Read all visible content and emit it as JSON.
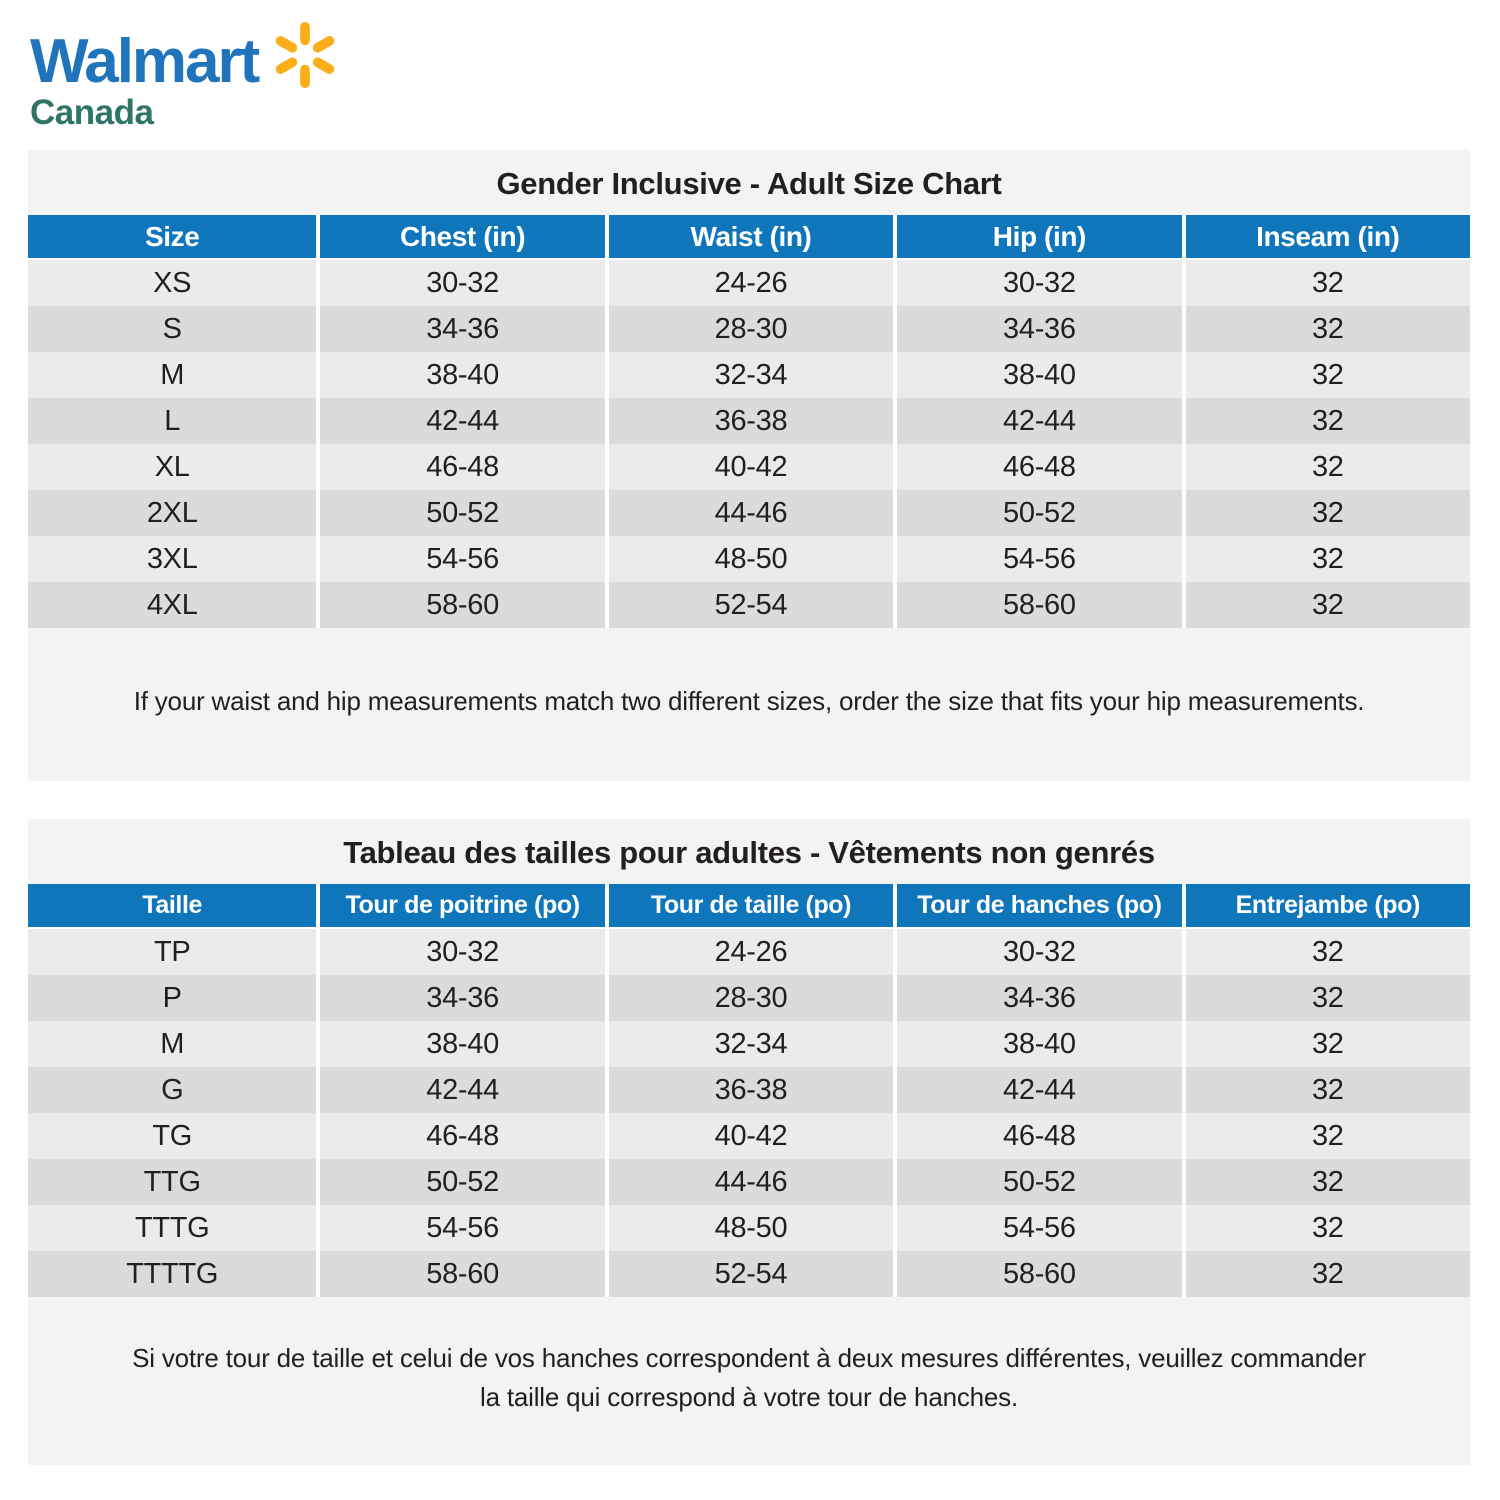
{
  "logo": {
    "brand": "Walmart",
    "region": "Canada"
  },
  "colors": {
    "walmart_blue": "#1F74BC",
    "spark_yellow": "#FBAE17",
    "canada_teal": "#2F7566",
    "header_blue": "#0F76BC",
    "header_text": "#FFFFFF",
    "row_light": "#EBEBEB",
    "row_dark": "#DBDBDB",
    "block_bg": "#F3F3F3",
    "text_dark": "#231F20"
  },
  "tables": [
    {
      "id": "en",
      "title": "Gender Inclusive - Adult Size Chart",
      "headers": [
        "Size",
        "Chest (in)",
        "Waist (in)",
        "Hip (in)",
        "Inseam (in)"
      ],
      "rows": [
        [
          "XS",
          "30-32",
          "24-26",
          "30-32",
          "32"
        ],
        [
          "S",
          "34-36",
          "28-30",
          "34-36",
          "32"
        ],
        [
          "M",
          "38-40",
          "32-34",
          "38-40",
          "32"
        ],
        [
          "L",
          "42-44",
          "36-38",
          "42-44",
          "32"
        ],
        [
          "XL",
          "46-48",
          "40-42",
          "46-48",
          "32"
        ],
        [
          "2XL",
          "50-52",
          "44-46",
          "50-52",
          "32"
        ],
        [
          "3XL",
          "54-56",
          "48-50",
          "54-56",
          "32"
        ],
        [
          "4XL",
          "58-60",
          "52-54",
          "58-60",
          "32"
        ]
      ],
      "footnote": "If your waist and hip measurements match two different sizes, order the size that fits your hip measurements."
    },
    {
      "id": "fr",
      "title": "Tableau des tailles pour adultes - Vêtements non genrés",
      "headers": [
        "Taille",
        "Tour de poitrine (po)",
        "Tour de taille (po)",
        "Tour de hanches (po)",
        "Entrejambe (po)"
      ],
      "rows": [
        [
          "TP",
          "30-32",
          "24-26",
          "30-32",
          "32"
        ],
        [
          "P",
          "34-36",
          "28-30",
          "34-36",
          "32"
        ],
        [
          "M",
          "38-40",
          "32-34",
          "38-40",
          "32"
        ],
        [
          "G",
          "42-44",
          "36-38",
          "42-44",
          "32"
        ],
        [
          "TG",
          "46-48",
          "40-42",
          "46-48",
          "32"
        ],
        [
          "TTG",
          "50-52",
          "44-46",
          "50-52",
          "32"
        ],
        [
          "TTTG",
          "54-56",
          "48-50",
          "54-56",
          "32"
        ],
        [
          "TTTTG",
          "58-60",
          "52-54",
          "58-60",
          "32"
        ]
      ],
      "footnote": "Si votre tour de taille et celui de vos hanches correspondent à deux mesures différentes, veuillez commander\nla taille qui correspond à votre tour de hanches."
    }
  ]
}
